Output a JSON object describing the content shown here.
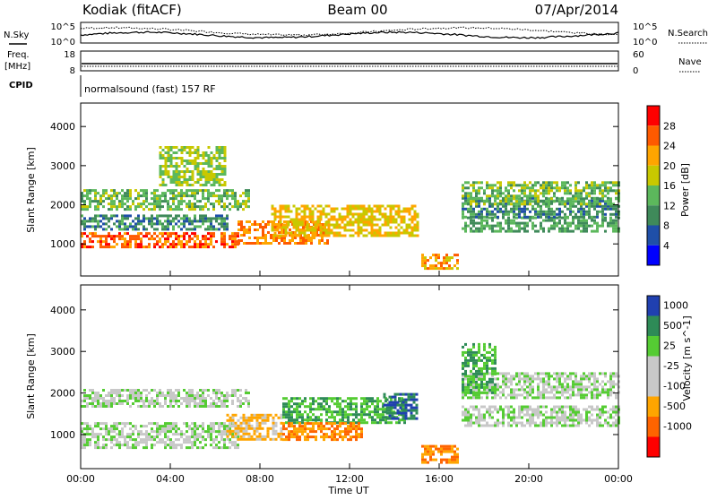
{
  "header": {
    "title_left": "Kodiak (fitACF)",
    "title_center": "Beam 00",
    "title_right": "07/Apr/2014"
  },
  "noise_panel": {
    "left_label": "N.Sky",
    "right_label": "N.Search",
    "left_tick_top": "10^5",
    "left_tick_bottom": "10^0",
    "right_tick_top": "10^5",
    "right_tick_bottom": "10^0"
  },
  "freq_panel": {
    "left_label_1": "Freq.",
    "left_label_2": "[MHz]",
    "right_label": "Nave",
    "left_tick_top": "18",
    "left_tick_bottom": "8",
    "right_tick_top": "60",
    "right_tick_bottom": "0"
  },
  "cpid_panel": {
    "label": "CPID",
    "text": "normalsound (fast) 157 RF"
  },
  "colors": {
    "power": [
      "#0000ff",
      "#1f4fa8",
      "#3f8a5a",
      "#5cb85c",
      "#c8c800",
      "#ffa500",
      "#ff5a00",
      "#ff0000"
    ],
    "velocity": [
      "#ff0000",
      "#ff6400",
      "#ffa500",
      "#c8c8c8",
      "#c8c8c8",
      "#55cc33",
      "#2e8b57",
      "#2040b0"
    ]
  },
  "chart_data": [
    {
      "type": "heatmap",
      "panel": "power",
      "xlabel": "",
      "ylabel": "Slant Range [km]",
      "xlim": [
        "00:00",
        "24:00"
      ],
      "ylim": [
        180,
        4600
      ],
      "yticks": [
        1000,
        2000,
        3000,
        4000
      ],
      "colorbar_label": "Power [dB]",
      "colorbar_ticks": [
        4,
        8,
        12,
        16,
        20,
        24,
        28
      ],
      "colorbar_range": [
        0,
        32
      ],
      "echo_bands": [
        {
          "t0": 0.0,
          "t1": 7.0,
          "r0": 900,
          "r1": 1300,
          "level": 26
        },
        {
          "t0": 7.0,
          "t1": 11.0,
          "r0": 1000,
          "r1": 1600,
          "level": 24
        },
        {
          "t0": 0.0,
          "t1": 6.5,
          "r0": 1400,
          "r1": 1750,
          "level": 10
        },
        {
          "t0": 0.0,
          "t1": 7.5,
          "r0": 1900,
          "r1": 2400,
          "level": 14
        },
        {
          "t0": 3.5,
          "t1": 6.5,
          "r0": 2500,
          "r1": 3500,
          "level": 16
        },
        {
          "t0": 8.5,
          "t1": 15.0,
          "r0": 1200,
          "r1": 2000,
          "level": 20
        },
        {
          "t0": 15.2,
          "t1": 16.8,
          "r0": 350,
          "r1": 750,
          "level": 22
        },
        {
          "t0": 17.0,
          "t1": 24.0,
          "r0": 1300,
          "r1": 1700,
          "level": 12
        },
        {
          "t0": 17.0,
          "t1": 24.0,
          "r0": 1700,
          "r1": 2200,
          "level": 10
        },
        {
          "t0": 17.0,
          "t1": 24.0,
          "r0": 2000,
          "r1": 2600,
          "level": 14
        }
      ]
    },
    {
      "type": "heatmap",
      "panel": "velocity",
      "xlabel": "Time UT",
      "ylabel": "Slant Range [km]",
      "xlim": [
        "00:00",
        "24:00"
      ],
      "ylim": [
        180,
        4600
      ],
      "yticks": [
        1000,
        2000,
        3000,
        4000
      ],
      "xticks": [
        "00:00",
        "04:00",
        "08:00",
        "12:00",
        "16:00",
        "20:00",
        "00:00"
      ],
      "colorbar_label": "Velocity [m s^-1]",
      "colorbar_ticks": [
        1000,
        500,
        25,
        -25,
        -100,
        -500,
        -1000
      ],
      "echo_bands": [
        {
          "t0": 0.0,
          "t1": 7.0,
          "r0": 700,
          "r1": 1300,
          "velocity": 0
        },
        {
          "t0": 0.0,
          "t1": 7.5,
          "r0": 1700,
          "r1": 2100,
          "velocity": 0
        },
        {
          "t0": 6.5,
          "t1": 9.0,
          "r0": 900,
          "r1": 1500,
          "velocity": -100
        },
        {
          "t0": 9.0,
          "t1": 14.5,
          "r0": 1300,
          "r1": 1900,
          "velocity": 500
        },
        {
          "t0": 9.0,
          "t1": 12.5,
          "r0": 900,
          "r1": 1300,
          "velocity": -500
        },
        {
          "t0": 13.5,
          "t1": 15.0,
          "r0": 1400,
          "r1": 2000,
          "velocity": 1000
        },
        {
          "t0": 15.2,
          "t1": 16.8,
          "r0": 350,
          "r1": 750,
          "velocity": -500
        },
        {
          "t0": 17.0,
          "t1": 24.0,
          "r0": 1200,
          "r1": 1700,
          "velocity": 0
        },
        {
          "t0": 17.0,
          "t1": 24.0,
          "r0": 1900,
          "r1": 2500,
          "velocity": 0
        },
        {
          "t0": 17.0,
          "t1": 18.5,
          "r0": 2000,
          "r1": 3200,
          "velocity": 500
        }
      ]
    }
  ]
}
